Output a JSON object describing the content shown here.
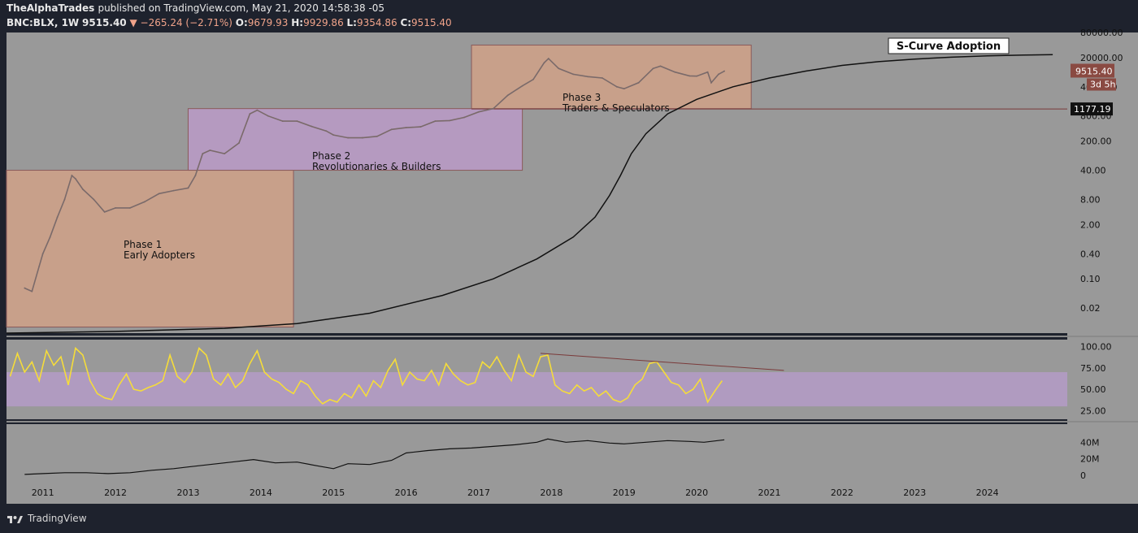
{
  "header": {
    "publisher": "TheAlphaTrades",
    "published_text": "published on TradingView.com, May 21, 2020 14:58:38 -05",
    "symbol": "BNC:BLX, 1W",
    "last": "9515.40",
    "change": "−265.24 (−2.71%)",
    "o_label": "O:",
    "o_value": "9679.93",
    "h_label": "H:",
    "h_value": "9929.86",
    "l_label": "L:",
    "l_value": "9354.86",
    "c_label": "C:",
    "c_value": "9515.40"
  },
  "footer": {
    "brand": "TradingView",
    "logo_icon": "tradingview-logo-icon"
  },
  "colors": {
    "plot_bg": "#999999",
    "phase1_box": "#c8a08a",
    "phase2_box": "#b59ac0",
    "phase3_box": "#c8a08a",
    "rsi_band": "#b09bc0",
    "rsi_line": "#f5dc3a",
    "price_line": "#7a6a6a",
    "scurve": "#111111"
  },
  "chart_data": [
    {
      "type": "line",
      "name": "price",
      "y_scale": "log",
      "ylim": [
        0.005,
        80000
      ],
      "xlim": [
        2010.5,
        2025.1
      ],
      "x_ticks": [
        "2011",
        "2012",
        "2013",
        "2014",
        "2015",
        "2016",
        "2017",
        "2018",
        "2019",
        "2020",
        "2021",
        "2022",
        "2023",
        "2024"
      ],
      "x_tick_values": [
        2011,
        2012,
        2013,
        2014,
        2015,
        2016,
        2017,
        2018,
        2019,
        2020,
        2021,
        2022,
        2023,
        2024
      ],
      "y_ticks": [
        {
          "label": "80000.00",
          "value": 80000
        },
        {
          "label": "20000.00",
          "value": 20000
        },
        {
          "label": "4000.00",
          "value": 4000
        },
        {
          "label": "800.00",
          "value": 800
        },
        {
          "label": "200.00",
          "value": 200
        },
        {
          "label": "40.00",
          "value": 40
        },
        {
          "label": "8.00",
          "value": 8
        },
        {
          "label": "2.00",
          "value": 2
        },
        {
          "label": "0.40",
          "value": 0.4
        },
        {
          "label": "0.10",
          "value": 0.1
        },
        {
          "label": "0.02",
          "value": 0.02
        }
      ],
      "x": [
        2010.75,
        2010.85,
        2010.95,
        2011.0,
        2011.1,
        2011.2,
        2011.3,
        2011.4,
        2011.45,
        2011.55,
        2011.7,
        2011.85,
        2012.0,
        2012.2,
        2012.4,
        2012.6,
        2012.8,
        2013.0,
        2013.1,
        2013.2,
        2013.3,
        2013.5,
        2013.7,
        2013.85,
        2013.95,
        2014.1,
        2014.3,
        2014.5,
        2014.7,
        2014.9,
        2015.0,
        2015.2,
        2015.4,
        2015.6,
        2015.8,
        2016.0,
        2016.2,
        2016.4,
        2016.6,
        2016.8,
        2017.0,
        2017.2,
        2017.4,
        2017.6,
        2017.75,
        2017.9,
        2017.96,
        2018.1,
        2018.3,
        2018.5,
        2018.7,
        2018.9,
        2019.0,
        2019.2,
        2019.4,
        2019.5,
        2019.7,
        2019.9,
        2020.0,
        2020.15,
        2020.2,
        2020.3,
        2020.38
      ],
      "values": [
        0.06,
        0.05,
        0.2,
        0.4,
        1.0,
        3.0,
        8.0,
        30.0,
        25.0,
        14.0,
        8.0,
        4.0,
        5.0,
        5.0,
        7.0,
        11.0,
        13.0,
        15.0,
        30.0,
        100.0,
        120.0,
        100.0,
        180.0,
        900.0,
        1100.0,
        800.0,
        600.0,
        600.0,
        450.0,
        350.0,
        280.0,
        240.0,
        240.0,
        260.0,
        380.0,
        420.0,
        440.0,
        600.0,
        620.0,
        740.0,
        1000.0,
        1200.0,
        2500.0,
        4200.0,
        6000.0,
        15000.0,
        19000.0,
        11000.0,
        8000.0,
        7000.0,
        6500.0,
        4000.0,
        3600.0,
        5000.0,
        11000.0,
        12500.0,
        9000.0,
        7300.0,
        7200.0,
        9000.0,
        5000.0,
        8000.0,
        9515.4
      ],
      "phase_boxes": [
        {
          "label1": "Phase 1",
          "label2": "Early Adopters",
          "x0": 2010.5,
          "x1": 2014.45,
          "y_top": 40,
          "y_bottom": 0.007
        },
        {
          "label1": "Phase 2",
          "label2": "Revolutionaries & Builders",
          "x0": 2013.0,
          "x1": 2017.6,
          "y_top": 1200,
          "y_bottom": 40
        },
        {
          "label1": "Phase 3",
          "label2": "Traders & Speculators",
          "x0": 2016.9,
          "x1": 2020.75,
          "y_top": 40000,
          "y_bottom": 1200
        }
      ],
      "s_curve_title": "S-Curve Adoption",
      "s_curve": {
        "x": [
          2010.5,
          2012.0,
          2013.5,
          2014.5,
          2015.5,
          2016.5,
          2017.2,
          2017.8,
          2018.3,
          2018.6,
          2018.8,
          2018.95,
          2019.1,
          2019.3,
          2019.6,
          2020.0,
          2020.5,
          2021.0,
          2021.5,
          2022.0,
          2022.5,
          2023.0,
          2023.5,
          2024.0,
          2024.5,
          2024.9
        ],
        "values": [
          0.005,
          0.0055,
          0.0065,
          0.0085,
          0.015,
          0.04,
          0.1,
          0.3,
          1.0,
          3.0,
          10.0,
          30.0,
          100.0,
          300.0,
          900.0,
          2000.0,
          4000.0,
          6500.0,
          9500.0,
          13000.0,
          16000.0,
          18500.0,
          20500.0,
          22000.0,
          23000.0,
          23500.0
        ]
      },
      "last_price_label": "9515.40",
      "countdown_label": "3d 5h",
      "horizontal_level": {
        "label": "1177.19",
        "value": 1177.19
      }
    },
    {
      "type": "line",
      "name": "rsi",
      "ylim": [
        15,
        108
      ],
      "y_ticks": [
        {
          "label": "100.00",
          "value": 100
        },
        {
          "label": "75.00",
          "value": 75
        },
        {
          "label": "50.00",
          "value": 50
        },
        {
          "label": "25.00",
          "value": 25
        }
      ],
      "band": [
        30,
        70
      ],
      "x": [
        2010.55,
        2010.65,
        2010.75,
        2010.85,
        2010.95,
        2011.05,
        2011.15,
        2011.25,
        2011.35,
        2011.45,
        2011.55,
        2011.65,
        2011.75,
        2011.85,
        2011.95,
        2012.05,
        2012.15,
        2012.25,
        2012.35,
        2012.45,
        2012.55,
        2012.65,
        2012.75,
        2012.85,
        2012.95,
        2013.05,
        2013.15,
        2013.25,
        2013.35,
        2013.45,
        2013.55,
        2013.65,
        2013.75,
        2013.85,
        2013.95,
        2014.05,
        2014.15,
        2014.25,
        2014.35,
        2014.45,
        2014.55,
        2014.65,
        2014.75,
        2014.85,
        2014.95,
        2015.05,
        2015.15,
        2015.25,
        2015.35,
        2015.45,
        2015.55,
        2015.65,
        2015.75,
        2015.85,
        2015.95,
        2016.05,
        2016.15,
        2016.25,
        2016.35,
        2016.45,
        2016.55,
        2016.65,
        2016.75,
        2016.85,
        2016.95,
        2017.05,
        2017.15,
        2017.25,
        2017.35,
        2017.45,
        2017.55,
        2017.65,
        2017.75,
        2017.85,
        2017.95,
        2018.05,
        2018.15,
        2018.25,
        2018.35,
        2018.45,
        2018.55,
        2018.65,
        2018.75,
        2018.85,
        2018.95,
        2019.05,
        2019.15,
        2019.25,
        2019.35,
        2019.45,
        2019.55,
        2019.65,
        2019.75,
        2019.85,
        2019.95,
        2020.05,
        2020.15,
        2020.25,
        2020.35
      ],
      "values": [
        65,
        92,
        70,
        82,
        60,
        95,
        78,
        88,
        55,
        98,
        90,
        60,
        45,
        40,
        38,
        55,
        68,
        50,
        48,
        52,
        55,
        60,
        90,
        65,
        58,
        70,
        98,
        90,
        62,
        55,
        68,
        52,
        60,
        80,
        95,
        70,
        62,
        58,
        50,
        45,
        60,
        55,
        42,
        33,
        38,
        35,
        45,
        40,
        55,
        42,
        60,
        52,
        72,
        85,
        55,
        70,
        62,
        60,
        72,
        55,
        80,
        68,
        60,
        55,
        58,
        82,
        75,
        88,
        72,
        60,
        90,
        70,
        65,
        88,
        90,
        55,
        48,
        45,
        55,
        48,
        52,
        42,
        48,
        38,
        35,
        40,
        55,
        62,
        80,
        82,
        70,
        58,
        55,
        45,
        50,
        62,
        35,
        48,
        60
      ],
      "trendline": {
        "x0": 2017.85,
        "v0": 92,
        "x1": 2021.2,
        "v1": 72
      }
    },
    {
      "type": "line",
      "name": "volume",
      "ylim": [
        -8,
        62
      ],
      "y_ticks": [
        {
          "label": "40M",
          "value": 40
        },
        {
          "label": "20M",
          "value": 20
        },
        {
          "label": "0",
          "value": 0
        }
      ],
      "x": [
        2010.75,
        2011.0,
        2011.3,
        2011.6,
        2011.9,
        2012.2,
        2012.5,
        2012.8,
        2013.0,
        2013.3,
        2013.6,
        2013.9,
        2014.2,
        2014.5,
        2014.8,
        2015.0,
        2015.2,
        2015.5,
        2015.8,
        2016.0,
        2016.3,
        2016.6,
        2016.9,
        2017.2,
        2017.5,
        2017.8,
        2017.95,
        2018.2,
        2018.5,
        2018.8,
        2019.0,
        2019.3,
        2019.6,
        2019.9,
        2020.1,
        2020.38
      ],
      "values": [
        1,
        2,
        3,
        3,
        2,
        3,
        6,
        8,
        10,
        13,
        16,
        19,
        15,
        16,
        11,
        8,
        14,
        13,
        18,
        27,
        30,
        32,
        33,
        35,
        37,
        40,
        44,
        40,
        42,
        39,
        38,
        40,
        42,
        41,
        40,
        43
      ]
    }
  ]
}
